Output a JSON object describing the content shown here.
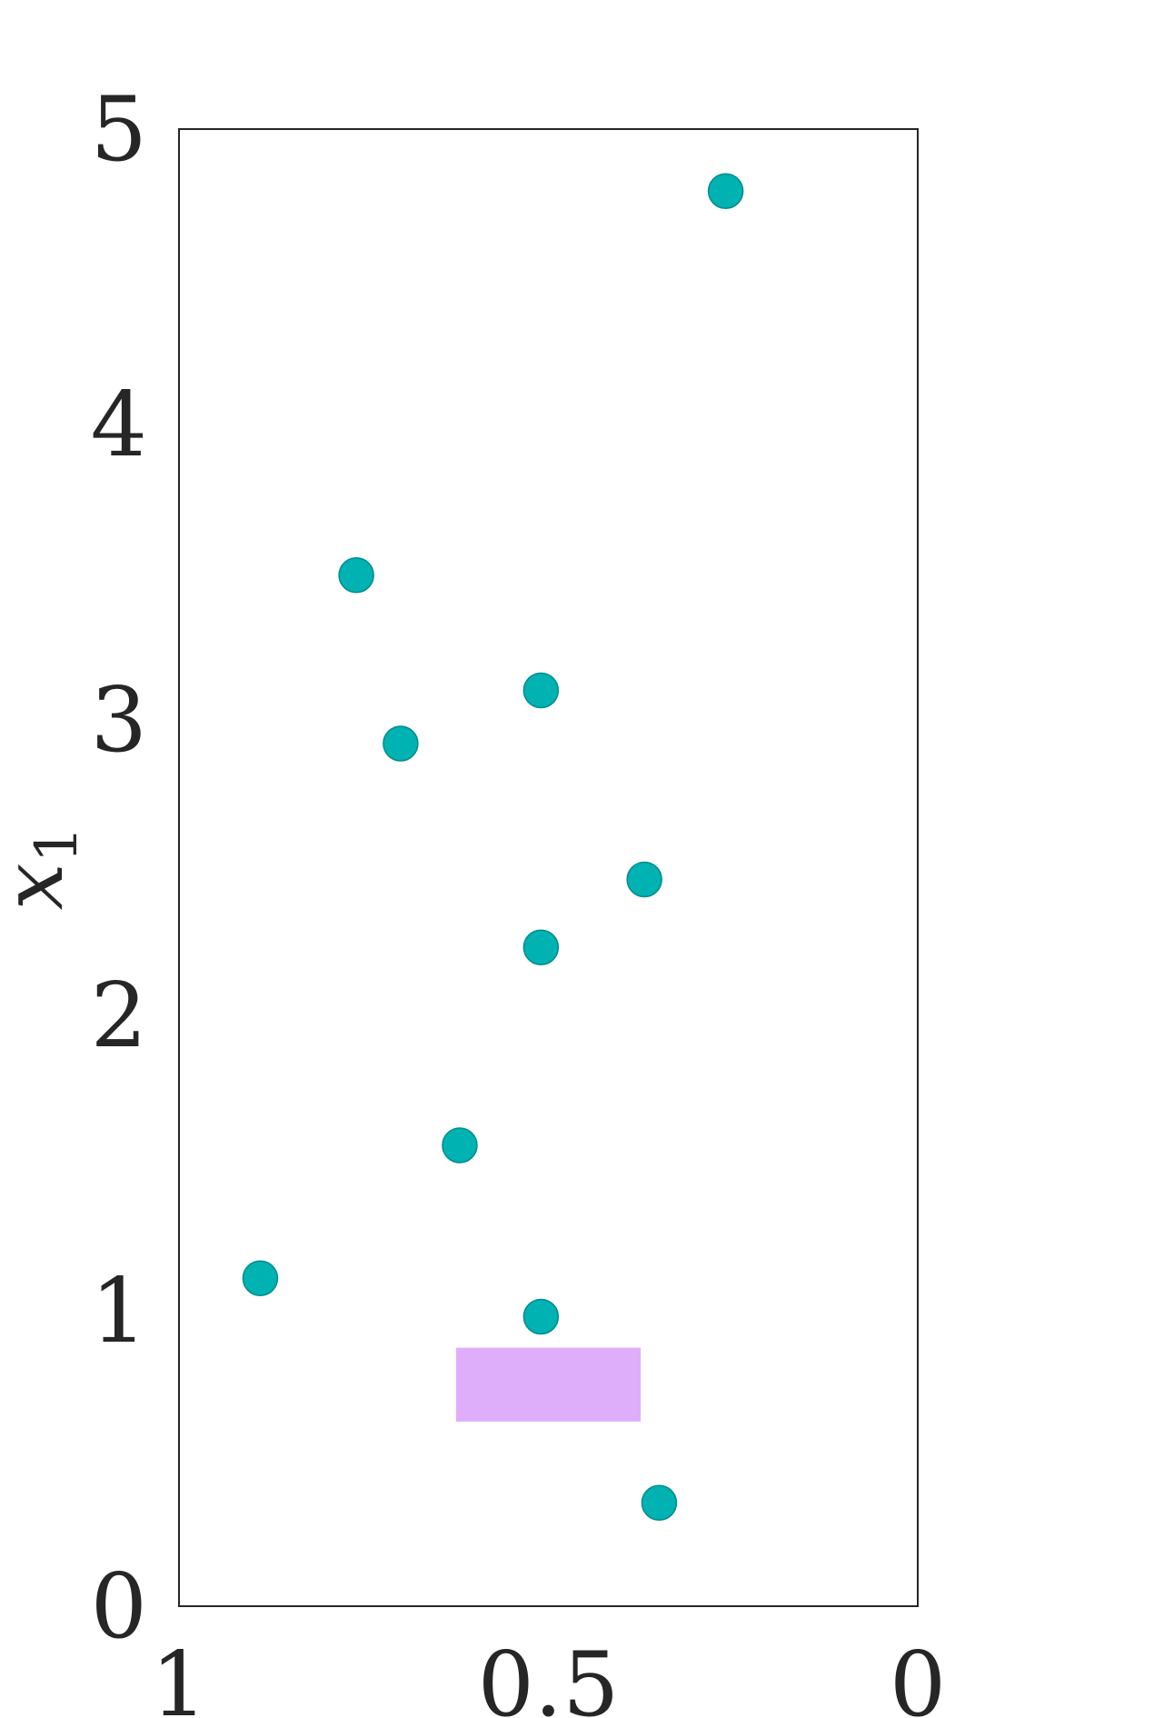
{
  "chart_data": {
    "type": "scatter",
    "title": "",
    "xlabel": "",
    "ylabel": "x",
    "ylabel_subscript": "1",
    "xlim": [
      1,
      0
    ],
    "ylim": [
      0,
      5
    ],
    "x_reversed": true,
    "grid": false,
    "xticks": [
      1,
      0.5,
      0
    ],
    "xtick_labels": [
      "1",
      "0.5",
      "0"
    ],
    "yticks": [
      0,
      1,
      2,
      3,
      4,
      5
    ],
    "ytick_labels": [
      "0",
      "1",
      "2",
      "3",
      "4",
      "5"
    ],
    "series": [
      {
        "marker_color": "#00B2B2",
        "marker_edge_color": "#008C8C",
        "points": [
          {
            "x": 0.26,
            "y": 4.79
          },
          {
            "x": 0.76,
            "y": 3.49
          },
          {
            "x": 0.51,
            "y": 3.1
          },
          {
            "x": 0.7,
            "y": 2.92
          },
          {
            "x": 0.37,
            "y": 2.46
          },
          {
            "x": 0.51,
            "y": 2.23
          },
          {
            "x": 0.62,
            "y": 1.56
          },
          {
            "x": 0.89,
            "y": 1.11
          },
          {
            "x": 0.51,
            "y": 0.98
          },
          {
            "x": 0.35,
            "y": 0.35
          }
        ]
      }
    ],
    "regions": [
      {
        "type": "rect",
        "x": [
          0.625,
          0.375
        ],
        "y": [
          0.625,
          0.875
        ],
        "color": "#DFAEFB"
      }
    ]
  }
}
